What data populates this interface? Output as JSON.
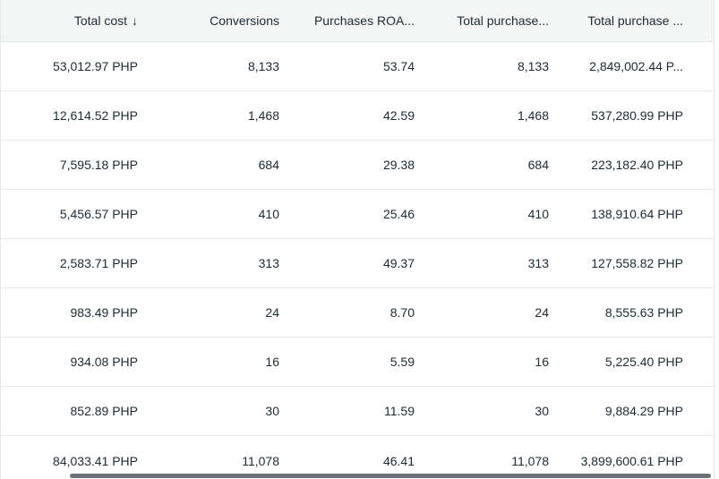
{
  "table": {
    "columns": [
      {
        "id": "total_cost",
        "label": "Total cost",
        "sort_icon": "↓",
        "sorted": "descending"
      },
      {
        "id": "conversions",
        "label": "Conversions"
      },
      {
        "id": "purchases_roas",
        "label": "Purchases ROA..."
      },
      {
        "id": "total_purchases",
        "label": "Total purchase..."
      },
      {
        "id": "total_purchase_value",
        "label": "Total purchase ..."
      }
    ],
    "rows": [
      [
        "53,012.97 PHP",
        "8,133",
        "53.74",
        "8,133",
        "2,849,002.44 P..."
      ],
      [
        "12,614.52 PHP",
        "1,468",
        "42.59",
        "1,468",
        "537,280.99 PHP"
      ],
      [
        "7,595.18 PHP",
        "684",
        "29.38",
        "684",
        "223,182.40 PHP"
      ],
      [
        "5,456.57 PHP",
        "410",
        "25.46",
        "410",
        "138,910.64 PHP"
      ],
      [
        "2,583.71 PHP",
        "313",
        "49.37",
        "313",
        "127,558.82 PHP"
      ],
      [
        "983.49 PHP",
        "24",
        "8.70",
        "24",
        "8,555.63 PHP"
      ],
      [
        "934.08 PHP",
        "16",
        "5.59",
        "16",
        "5,225.40 PHP"
      ],
      [
        "852.89 PHP",
        "30",
        "11.59",
        "30",
        "9,884.29 PHP"
      ]
    ],
    "totals": [
      "84,033.41 PHP",
      "11,078",
      "46.41",
      "11,078",
      "3,899,600.61 PHP"
    ],
    "currency": "PHP"
  },
  "colors": {
    "header_bg": "#f4f5f5",
    "divider": "#e6e8ea",
    "text": "#1c2b33",
    "scrollbar_thumb": "#54585d",
    "background": "#ffffff"
  }
}
